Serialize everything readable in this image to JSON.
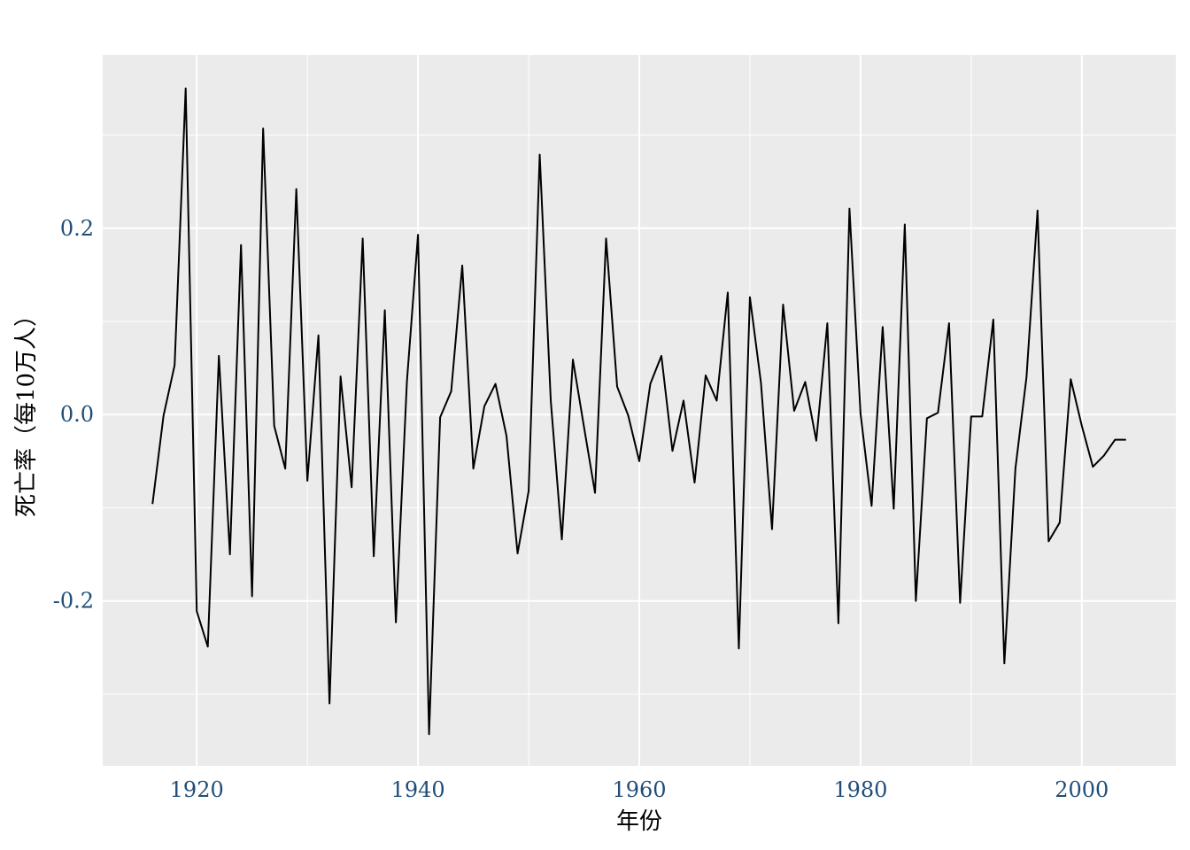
{
  "chart_data": {
    "type": "line",
    "title": "",
    "xlabel": "年份",
    "ylabel": "死亡率（每10万人）",
    "xlim": [
      1911.5,
      2008.5
    ],
    "ylim": [
      -0.377,
      0.386
    ],
    "x_ticks": [
      1920,
      1940,
      1960,
      1980,
      2000
    ],
    "y_ticks": [
      -0.2,
      0.0,
      0.2
    ],
    "x_tick_labels": [
      "1920",
      "1940",
      "1960",
      "1980",
      "2000"
    ],
    "y_tick_labels": [
      "-0.2",
      "0.0",
      "0.2"
    ],
    "grid": true,
    "legend": "none",
    "colors": {
      "panel": "#ebebeb",
      "grid": "#ffffff",
      "line": "#000000",
      "tick_text": "#1f4e79"
    },
    "series": [
      {
        "x": [
          1916,
          1917,
          1918,
          1919,
          1920,
          1921,
          1922,
          1923,
          1924,
          1925,
          1926,
          1927,
          1928,
          1929,
          1930,
          1931,
          1932,
          1933,
          1934,
          1935,
          1936,
          1937,
          1938,
          1939,
          1940,
          1941,
          1942,
          1943,
          1944,
          1945,
          1946,
          1947,
          1948,
          1949,
          1950,
          1951,
          1952,
          1953,
          1954,
          1955,
          1956,
          1957,
          1958,
          1959,
          1960,
          1961,
          1962,
          1963,
          1964,
          1965,
          1966,
          1967,
          1968,
          1969,
          1970,
          1971,
          1972,
          1973,
          1974,
          1975,
          1976,
          1977,
          1978,
          1979,
          1980,
          1981,
          1982,
          1983,
          1984,
          1985,
          1986,
          1987,
          1988,
          1989,
          1990,
          1991,
          1992,
          1993,
          1994,
          1995,
          1996,
          1997,
          1998,
          1999,
          2000,
          2001,
          2002,
          2003,
          2004
        ],
        "y": [
          -0.096,
          -0.001,
          0.053,
          0.35,
          -0.211,
          -0.249,
          0.063,
          -0.15,
          0.182,
          -0.195,
          0.307,
          -0.012,
          -0.058,
          0.242,
          -0.071,
          0.085,
          -0.31,
          0.041,
          -0.078,
          0.189,
          -0.152,
          0.112,
          -0.223,
          0.036,
          0.193,
          -0.343,
          -0.003,
          0.025,
          0.16,
          -0.058,
          0.009,
          0.033,
          -0.023,
          -0.149,
          -0.082,
          0.279,
          0.015,
          -0.134,
          0.059,
          -0.013,
          -0.084,
          0.189,
          0.03,
          -0.001,
          -0.05,
          0.033,
          0.063,
          -0.039,
          0.015,
          -0.073,
          0.042,
          0.015,
          0.131,
          -0.251,
          0.126,
          0.034,
          -0.123,
          0.118,
          0.004,
          0.035,
          -0.028,
          0.098,
          -0.224,
          0.221,
          0.001,
          -0.098,
          0.094,
          -0.101,
          0.204,
          -0.2,
          -0.004,
          0.002,
          0.098,
          -0.202,
          -0.002,
          -0.002,
          0.102,
          -0.267,
          -0.058,
          0.04,
          0.219,
          -0.136,
          -0.116,
          0.038,
          -0.012,
          -0.056,
          -0.044,
          -0.027,
          -0.027
        ]
      }
    ]
  }
}
